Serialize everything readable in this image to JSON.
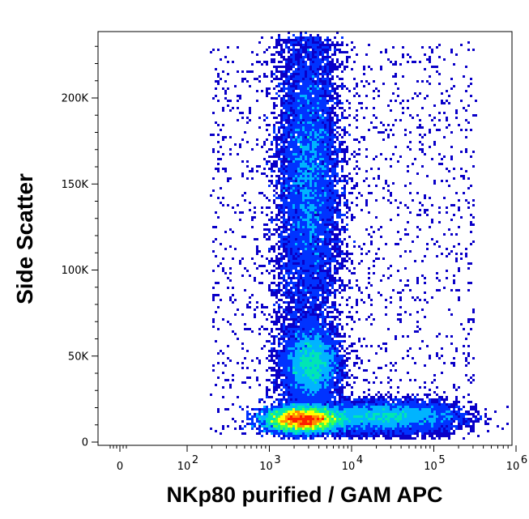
{
  "chart_data": {
    "type": "scatter",
    "subtype": "flow-cytometry-density-dot-plot",
    "xlabel": "NKp80 purified / GAM APC",
    "ylabel": "Side Scatter",
    "x_scale": "biexponential (log)",
    "x_ticks": [
      {
        "value": 0,
        "label": "0"
      },
      {
        "value": 100,
        "base": "10",
        "exp": "2"
      },
      {
        "value": 1000,
        "base": "10",
        "exp": "3"
      },
      {
        "value": 10000,
        "base": "10",
        "exp": "4"
      },
      {
        "value": 100000,
        "base": "10",
        "exp": "5"
      },
      {
        "value": 1000000,
        "base": "10",
        "exp": "6"
      }
    ],
    "y_ticks": [
      {
        "value": 0,
        "label": "0"
      },
      {
        "value": 50000,
        "label": "50K"
      },
      {
        "value": 100000,
        "label": "100K"
      },
      {
        "value": 150000,
        "label": "150K"
      },
      {
        "value": 200000,
        "label": "200K"
      }
    ],
    "ylim": [
      0,
      235000
    ],
    "density_colormap": [
      "#0a00c8",
      "#0033ff",
      "#00b4ff",
      "#00e6b4",
      "#46ff46",
      "#ffff00",
      "#ff8c00",
      "#ff1e00"
    ],
    "populations": [
      {
        "x_center": 2500,
        "y_center": 13000,
        "x_log_spread": 0.22,
        "y_spread": 3500,
        "relative_density": 1.0
      },
      {
        "x_center": 3200,
        "y_center": 45000,
        "x_log_spread": 0.16,
        "y_spread": 10000,
        "relative_density": 0.35
      },
      {
        "x_center": 3000,
        "y_center": 155000,
        "x_log_spread": 0.17,
        "y_spread": 38000,
        "relative_density": 0.45
      },
      {
        "x_center": 25000,
        "y_center": 15000,
        "x_log_spread": 0.45,
        "y_spread": 4000,
        "relative_density": 0.3
      }
    ]
  }
}
